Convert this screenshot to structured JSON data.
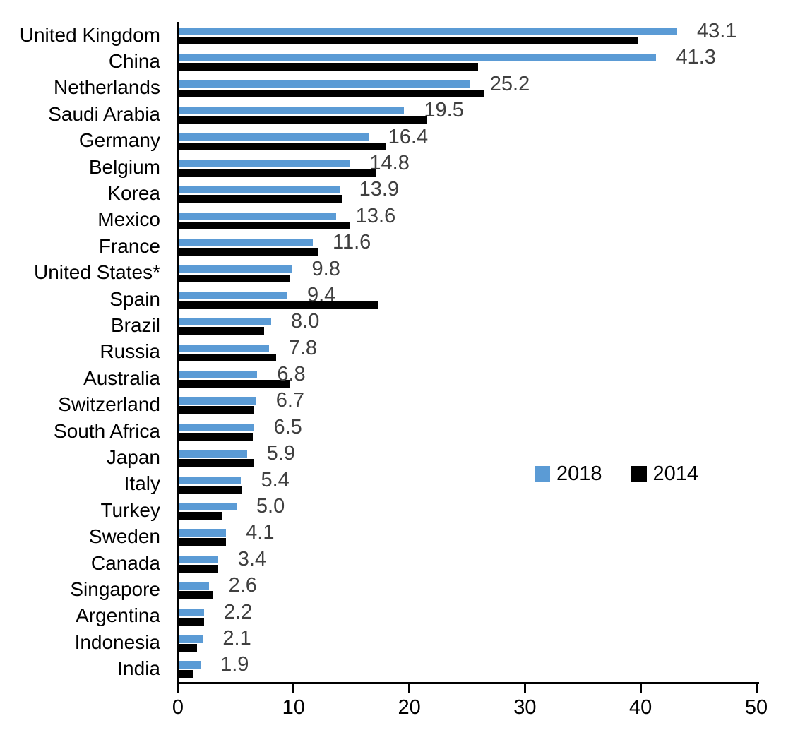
{
  "chart_data": {
    "type": "bar",
    "orientation": "horizontal",
    "title": "",
    "xlabel": "",
    "ylabel": "",
    "xlim": [
      0,
      50
    ],
    "x_ticks": [
      "0",
      "10",
      "20",
      "30",
      "40",
      "50"
    ],
    "grid": false,
    "legend_position": "middle-right",
    "categories": [
      "United Kingdom",
      "China",
      "Netherlands",
      "Saudi Arabia",
      "Germany",
      "Belgium",
      "Korea",
      "Mexico",
      "France",
      "United States*",
      "Spain",
      "Brazil",
      "Russia",
      "Australia",
      "Switzerland",
      "South Africa",
      "Japan",
      "Italy",
      "Turkey",
      "Sweden",
      "Canada",
      "Singapore",
      "Argentina",
      "Indonesia",
      "India"
    ],
    "series": [
      {
        "name": "2018",
        "color": "#5B9BD5",
        "values": [
          43.1,
          41.3,
          25.2,
          19.5,
          16.4,
          14.8,
          13.9,
          13.6,
          11.6,
          9.8,
          9.4,
          8.0,
          7.8,
          6.8,
          6.7,
          6.5,
          5.9,
          5.4,
          5.0,
          4.1,
          3.4,
          2.6,
          2.2,
          2.1,
          1.9
        ]
      },
      {
        "name": "2014",
        "color": "#000000",
        "values": [
          39.7,
          25.9,
          26.4,
          21.5,
          17.9,
          17.1,
          14.1,
          14.8,
          12.1,
          9.6,
          17.2,
          7.4,
          8.4,
          9.6,
          6.5,
          6.4,
          6.5,
          5.5,
          3.8,
          4.1,
          3.4,
          2.9,
          2.2,
          1.6,
          1.2
        ]
      }
    ],
    "data_labels": [
      "43.1",
      "41.3",
      "25.2",
      "19.5",
      "16.4",
      "14.8",
      "13.9",
      "13.6",
      "11.6",
      "9.8",
      "9.4",
      "8.0",
      "7.8",
      "6.8",
      "6.7",
      "6.5",
      "5.9",
      "5.4",
      "5.0",
      "4.1",
      "3.4",
      "2.6",
      "2.2",
      "2.1",
      "1.9"
    ],
    "data_label_color": "#404040"
  },
  "legend": {
    "items": [
      {
        "label": "2018",
        "color": "#5B9BD5"
      },
      {
        "label": "2014",
        "color": "#000000"
      }
    ]
  }
}
